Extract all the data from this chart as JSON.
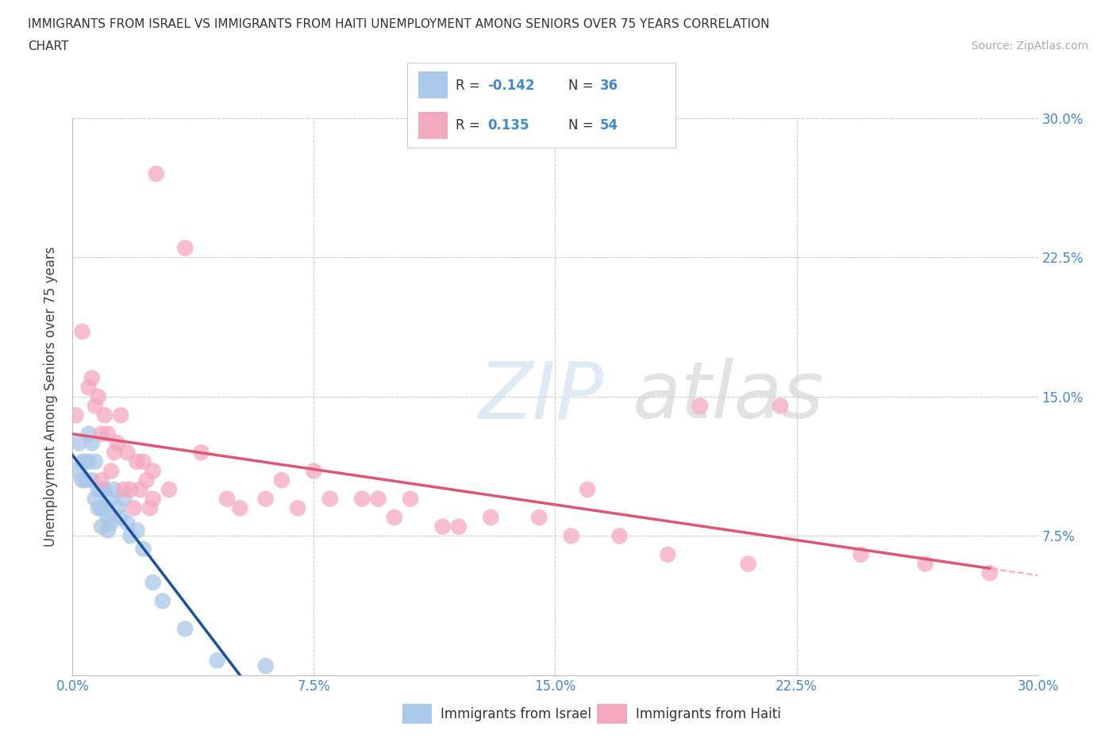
{
  "title_line1": "IMMIGRANTS FROM ISRAEL VS IMMIGRANTS FROM HAITI UNEMPLOYMENT AMONG SENIORS OVER 75 YEARS CORRELATION",
  "title_line2": "CHART",
  "source": "Source: ZipAtlas.com",
  "ylabel": "Unemployment Among Seniors over 75 years",
  "xlim": [
    0.0,
    0.3
  ],
  "ylim": [
    0.0,
    0.3
  ],
  "xtick_vals": [
    0.0,
    0.075,
    0.15,
    0.225,
    0.3
  ],
  "xticklabels": [
    "0.0%",
    "7.5%",
    "15.0%",
    "22.5%",
    "30.0%"
  ],
  "ytick_vals": [
    0.0,
    0.075,
    0.15,
    0.225,
    0.3
  ],
  "right_yticklabels": [
    "",
    "7.5%",
    "15.0%",
    "22.5%",
    "30.0%"
  ],
  "r_israel": "-0.142",
  "n_israel": "36",
  "r_haiti": "0.135",
  "n_haiti": "54",
  "israel_color": "#aac8e8",
  "haiti_color": "#f4a8be",
  "trendline_israel_color": "#1a50a0",
  "trendline_haiti_color": "#e05575",
  "trendline_dashed_color": "#aac8e8",
  "background_color": "#ffffff",
  "grid_color": "#cccccc",
  "tick_label_color": "#4488cc",
  "title_color": "#333333",
  "israel_x": [
    0.001,
    0.002,
    0.003,
    0.003,
    0.004,
    0.004,
    0.005,
    0.005,
    0.006,
    0.006,
    0.007,
    0.007,
    0.008,
    0.008,
    0.009,
    0.009,
    0.009,
    0.01,
    0.01,
    0.011,
    0.011,
    0.012,
    0.012,
    0.013,
    0.014,
    0.015,
    0.016,
    0.017,
    0.018,
    0.02,
    0.022,
    0.025,
    0.028,
    0.035,
    0.045,
    0.06
  ],
  "israel_y": [
    0.11,
    0.125,
    0.115,
    0.105,
    0.115,
    0.105,
    0.13,
    0.115,
    0.125,
    0.105,
    0.115,
    0.095,
    0.1,
    0.09,
    0.1,
    0.09,
    0.08,
    0.1,
    0.09,
    0.085,
    0.078,
    0.095,
    0.082,
    0.1,
    0.09,
    0.085,
    0.095,
    0.082,
    0.075,
    0.078,
    0.068,
    0.05,
    0.04,
    0.025,
    0.008,
    0.005
  ],
  "haiti_x": [
    0.001,
    0.003,
    0.005,
    0.006,
    0.007,
    0.008,
    0.009,
    0.009,
    0.01,
    0.011,
    0.012,
    0.013,
    0.014,
    0.015,
    0.016,
    0.017,
    0.018,
    0.019,
    0.02,
    0.021,
    0.022,
    0.023,
    0.024,
    0.025,
    0.025,
    0.026,
    0.03,
    0.035,
    0.04,
    0.048,
    0.052,
    0.06,
    0.065,
    0.07,
    0.075,
    0.08,
    0.09,
    0.095,
    0.1,
    0.105,
    0.115,
    0.12,
    0.13,
    0.145,
    0.155,
    0.16,
    0.17,
    0.185,
    0.195,
    0.21,
    0.22,
    0.245,
    0.265,
    0.285
  ],
  "haiti_y": [
    0.14,
    0.185,
    0.155,
    0.16,
    0.145,
    0.15,
    0.13,
    0.105,
    0.14,
    0.13,
    0.11,
    0.12,
    0.125,
    0.14,
    0.1,
    0.12,
    0.1,
    0.09,
    0.115,
    0.1,
    0.115,
    0.105,
    0.09,
    0.095,
    0.11,
    0.27,
    0.1,
    0.23,
    0.12,
    0.095,
    0.09,
    0.095,
    0.105,
    0.09,
    0.11,
    0.095,
    0.095,
    0.095,
    0.085,
    0.095,
    0.08,
    0.08,
    0.085,
    0.085,
    0.075,
    0.1,
    0.075,
    0.065,
    0.145,
    0.06,
    0.145,
    0.065,
    0.06,
    0.055
  ]
}
